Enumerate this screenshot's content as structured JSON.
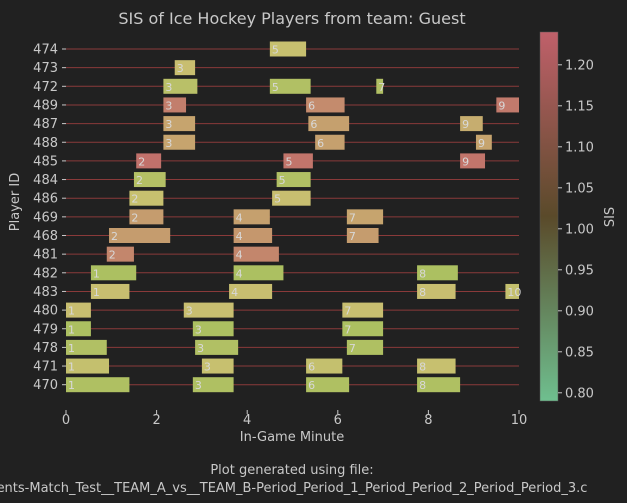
{
  "chart_data": {
    "type": "timeline",
    "title": "SIS of Ice Hockey Players from team: Guest",
    "xlabel": "In-Game Minute",
    "ylabel": "Player ID",
    "xlim": [
      0,
      10
    ],
    "xticks": [
      0,
      2,
      4,
      6,
      8,
      10
    ],
    "colorbar": {
      "label": "SIS",
      "range": [
        0.79,
        1.24
      ],
      "ticks": [
        "0.80",
        "0.85",
        "0.90",
        "0.95",
        "1.00",
        "1.05",
        "1.10",
        "1.15",
        "1.20"
      ],
      "colors": {
        "low": "#6fbf8f",
        "mid": "#5a4a2a",
        "high": "#c0606a"
      }
    },
    "footer": [
      "Plot generated using file:",
      "ents-Match_Test__TEAM_A_vs__TEAM_B-Period_Period_1_Period_Period_2_Period_Period_3.c"
    ],
    "players": [
      "474",
      "473",
      "472",
      "489",
      "487",
      "488",
      "485",
      "484",
      "486",
      "469",
      "468",
      "481",
      "482",
      "483",
      "480",
      "479",
      "478",
      "471",
      "470"
    ],
    "segments": [
      {
        "p": "474",
        "x0": 4.5,
        "x1": 5.3,
        "shift": "5",
        "sis": 1.01
      },
      {
        "p": "473",
        "x0": 2.4,
        "x1": 2.85,
        "shift": "3",
        "sis": 1.02
      },
      {
        "p": "472",
        "x0": 2.15,
        "x1": 2.9,
        "shift": "3",
        "sis": 0.96
      },
      {
        "p": "472",
        "x0": 4.5,
        "x1": 5.4,
        "shift": "5",
        "sis": 0.93
      },
      {
        "p": "472",
        "x0": 6.85,
        "x1": 7.0,
        "shift": "7",
        "sis": 0.93
      },
      {
        "p": "489",
        "x0": 2.15,
        "x1": 2.65,
        "shift": "3",
        "sis": 1.17
      },
      {
        "p": "489",
        "x0": 5.3,
        "x1": 6.15,
        "shift": "6",
        "sis": 1.14
      },
      {
        "p": "489",
        "x0": 9.5,
        "x1": 10.0,
        "shift": "9",
        "sis": 1.18
      },
      {
        "p": "487",
        "x0": 2.15,
        "x1": 2.85,
        "shift": "3",
        "sis": 1.08
      },
      {
        "p": "487",
        "x0": 5.35,
        "x1": 6.25,
        "shift": "6",
        "sis": 1.09
      },
      {
        "p": "487",
        "x0": 8.7,
        "x1": 9.2,
        "shift": "9",
        "sis": 1.06
      },
      {
        "p": "488",
        "x0": 2.15,
        "x1": 2.85,
        "shift": "3",
        "sis": 1.08
      },
      {
        "p": "488",
        "x0": 5.5,
        "x1": 6.15,
        "shift": "6",
        "sis": 1.09
      },
      {
        "p": "488",
        "x0": 9.05,
        "x1": 9.4,
        "shift": "9",
        "sis": 1.08
      },
      {
        "p": "485",
        "x0": 1.55,
        "x1": 2.1,
        "shift": "2",
        "sis": 1.2
      },
      {
        "p": "485",
        "x0": 4.8,
        "x1": 5.45,
        "shift": "5",
        "sis": 1.19
      },
      {
        "p": "485",
        "x0": 8.7,
        "x1": 9.25,
        "shift": "9",
        "sis": 1.19
      },
      {
        "p": "484",
        "x0": 1.5,
        "x1": 2.2,
        "shift": "2",
        "sis": 0.94
      },
      {
        "p": "484",
        "x0": 4.65,
        "x1": 5.4,
        "shift": "5",
        "sis": 0.93
      },
      {
        "p": "486",
        "x0": 1.4,
        "x1": 2.15,
        "shift": "2",
        "sis": 1.01
      },
      {
        "p": "486",
        "x0": 4.55,
        "x1": 5.4,
        "shift": "5",
        "sis": 1.02
      },
      {
        "p": "469",
        "x0": 1.4,
        "x1": 2.15,
        "shift": "2",
        "sis": 1.1
      },
      {
        "p": "469",
        "x0": 3.7,
        "x1": 4.5,
        "shift": "4",
        "sis": 1.09
      },
      {
        "p": "469",
        "x0": 6.2,
        "x1": 7.0,
        "shift": "7",
        "sis": 1.08
      },
      {
        "p": "468",
        "x0": 0.95,
        "x1": 2.3,
        "shift": "2",
        "sis": 1.1
      },
      {
        "p": "468",
        "x0": 3.7,
        "x1": 4.55,
        "shift": "4",
        "sis": 1.11
      },
      {
        "p": "468",
        "x0": 6.2,
        "x1": 6.9,
        "shift": "7",
        "sis": 1.1
      },
      {
        "p": "481",
        "x0": 0.9,
        "x1": 1.5,
        "shift": "2",
        "sis": 1.15
      },
      {
        "p": "481",
        "x0": 3.7,
        "x1": 4.7,
        "shift": "4",
        "sis": 1.15
      },
      {
        "p": "482",
        "x0": 0.55,
        "x1": 1.55,
        "shift": "1",
        "sis": 0.91
      },
      {
        "p": "482",
        "x0": 3.7,
        "x1": 4.8,
        "shift": "4",
        "sis": 0.91
      },
      {
        "p": "482",
        "x0": 7.75,
        "x1": 8.65,
        "shift": "8",
        "sis": 0.91
      },
      {
        "p": "483",
        "x0": 0.55,
        "x1": 1.4,
        "shift": "1",
        "sis": 1.02
      },
      {
        "p": "483",
        "x0": 3.6,
        "x1": 4.55,
        "shift": "4",
        "sis": 1.02
      },
      {
        "p": "483",
        "x0": 7.75,
        "x1": 8.6,
        "shift": "8",
        "sis": 1.02
      },
      {
        "p": "483",
        "x0": 9.7,
        "x1": 10.0,
        "shift": "10",
        "sis": 1.0
      },
      {
        "p": "480",
        "x0": 0.0,
        "x1": 0.55,
        "shift": "1",
        "sis": 1.02
      },
      {
        "p": "480",
        "x0": 2.6,
        "x1": 3.7,
        "shift": "3",
        "sis": 1.02
      },
      {
        "p": "480",
        "x0": 6.1,
        "x1": 7.0,
        "shift": "7",
        "sis": 1.02
      },
      {
        "p": "479",
        "x0": 0.0,
        "x1": 0.55,
        "shift": "1",
        "sis": 0.91
      },
      {
        "p": "479",
        "x0": 2.8,
        "x1": 3.7,
        "shift": "3",
        "sis": 0.91
      },
      {
        "p": "479",
        "x0": 6.1,
        "x1": 7.0,
        "shift": "7",
        "sis": 0.91
      },
      {
        "p": "478",
        "x0": 0.0,
        "x1": 0.9,
        "shift": "1",
        "sis": 0.93
      },
      {
        "p": "478",
        "x0": 2.85,
        "x1": 3.8,
        "shift": "3",
        "sis": 0.93
      },
      {
        "p": "478",
        "x0": 6.2,
        "x1": 7.0,
        "shift": "7",
        "sis": 0.92
      },
      {
        "p": "471",
        "x0": 0.0,
        "x1": 0.95,
        "shift": "1",
        "sis": 1.0
      },
      {
        "p": "471",
        "x0": 3.0,
        "x1": 3.7,
        "shift": "3",
        "sis": 1.01
      },
      {
        "p": "471",
        "x0": 5.3,
        "x1": 6.1,
        "shift": "6",
        "sis": 1.0
      },
      {
        "p": "471",
        "x0": 7.75,
        "x1": 8.6,
        "shift": "8",
        "sis": 1.01
      },
      {
        "p": "470",
        "x0": 0.0,
        "x1": 1.4,
        "shift": "1",
        "sis": 0.92
      },
      {
        "p": "470",
        "x0": 2.8,
        "x1": 3.7,
        "shift": "3",
        "sis": 0.92
      },
      {
        "p": "470",
        "x0": 5.3,
        "x1": 6.25,
        "shift": "6",
        "sis": 0.92
      },
      {
        "p": "470",
        "x0": 7.75,
        "x1": 8.7,
        "shift": "8",
        "sis": 0.92
      }
    ]
  }
}
